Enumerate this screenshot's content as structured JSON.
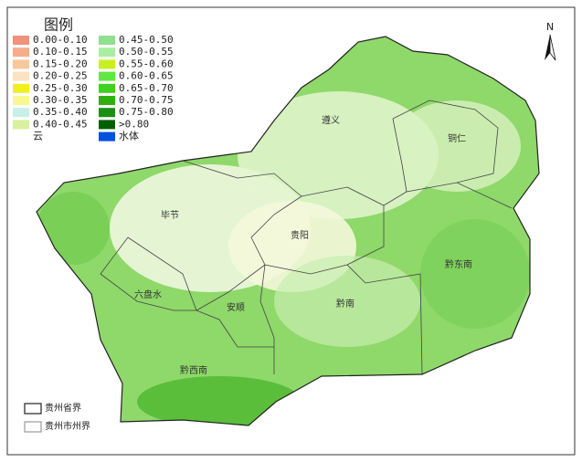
{
  "legend": {
    "title": "图例",
    "items": [
      {
        "label": "0.00-0.10",
        "color": "#f0927c"
      },
      {
        "label": "0.10-0.15",
        "color": "#f5ad8c"
      },
      {
        "label": "0.15-0.20",
        "color": "#f8c79c"
      },
      {
        "label": "0.20-0.25",
        "color": "#fbe2c0"
      },
      {
        "label": "0.25-0.30",
        "color": "#f0f020"
      },
      {
        "label": "0.30-0.35",
        "color": "#f8f890"
      },
      {
        "label": "0.35-0.40",
        "color": "#c8f0e8"
      },
      {
        "label": "0.40-0.45",
        "color": "#d8f0a0"
      },
      {
        "label": "云",
        "color": "#ffffff"
      },
      {
        "label": "0.45-0.50",
        "color": "#90e090"
      },
      {
        "label": "0.50-0.55",
        "color": "#a8f0a0"
      },
      {
        "label": "0.55-0.60",
        "color": "#c8f020"
      },
      {
        "label": "0.60-0.65",
        "color": "#60e840"
      },
      {
        "label": "0.65-0.70",
        "color": "#40d020"
      },
      {
        "label": "0.70-0.75",
        "color": "#30b010"
      },
      {
        "label": "0.75-0.80",
        "color": "#189010"
      },
      {
        ">label": null,
        "label": ">0.80",
        "color": "#006000"
      },
      {
        "label": "水体",
        "color": "#0050e0"
      }
    ]
  },
  "north": "N",
  "regions": [
    {
      "label": "遵义"
    },
    {
      "label": "铜仁"
    },
    {
      "label": "毕节"
    },
    {
      "label": "贵阳"
    },
    {
      "label": "黔东南"
    },
    {
      "label": "六盘水"
    },
    {
      "label": "安顺"
    },
    {
      "label": "黔南"
    },
    {
      "label": "黔西南"
    }
  ],
  "boundary_legend": [
    {
      "label": "贵州省界"
    },
    {
      "label": "贵州市州界"
    }
  ]
}
